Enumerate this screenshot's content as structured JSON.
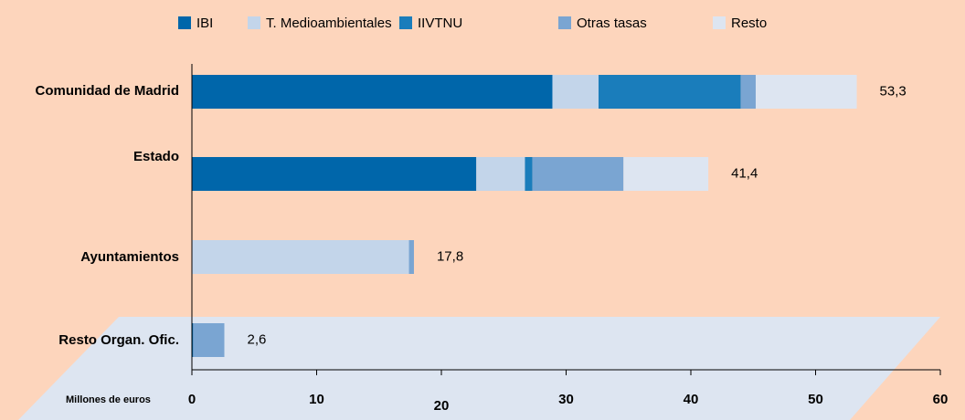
{
  "chart_data": {
    "type": "stacked_barh",
    "categories": [
      "Comunidad de Madrid",
      "Estado",
      "Ayuntamientos",
      "Resto Organ. Ofic."
    ],
    "series": [
      {
        "name": "IBI",
        "color": "#0066aa",
        "values": [
          28.9,
          22.8,
          0,
          0.1
        ]
      },
      {
        "name": "T. Medioambientales",
        "color": "#c3d5ea",
        "values": [
          3.7,
          3.9,
          17.4,
          0
        ]
      },
      {
        "name": "IIVTNU",
        "color": "#1a7dbb",
        "values": [
          11.4,
          0.6,
          0,
          0
        ]
      },
      {
        "name": "Otras tasas",
        "color": "#7aa5d2",
        "values": [
          1.2,
          7.3,
          0.4,
          2.5
        ]
      },
      {
        "name": "Resto",
        "color": "#dde5f1",
        "values": [
          8.1,
          6.8,
          0,
          0
        ]
      }
    ],
    "totals": [
      53.3,
      41.4,
      17.8,
      2.6
    ],
    "total_labels": [
      "53,3",
      "41,4",
      "17,8",
      "2,6"
    ],
    "x_label": "Millones de euros",
    "xlim": [
      0,
      60
    ],
    "xticks": [
      0,
      10,
      20,
      30,
      40,
      50,
      60
    ],
    "legend": "top"
  }
}
